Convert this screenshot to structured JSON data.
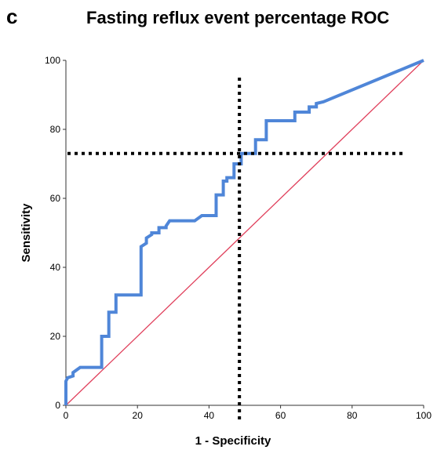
{
  "panel_label": "c",
  "chart_data": {
    "type": "line",
    "title": "Fasting reflux event percentage ROC",
    "xlabel": "1 - Specificity",
    "ylabel": "Sensitivity",
    "xlim": [
      0,
      100
    ],
    "ylim": [
      0,
      100
    ],
    "xticks": [
      "0",
      "20",
      "40",
      "60",
      "80",
      "100"
    ],
    "yticks": [
      "0",
      "20",
      "40",
      "60",
      "80",
      "100"
    ],
    "grid": false,
    "colors": {
      "roc": "#4f86d8",
      "reference": "#e0405c",
      "cutoff": "#000000"
    },
    "roc_curve": {
      "x": [
        0,
        0,
        0.5,
        2,
        2,
        4,
        10,
        10,
        12,
        12,
        14,
        14,
        21,
        21,
        22.5,
        22.5,
        24,
        24,
        26,
        26,
        28,
        28,
        29,
        36,
        38,
        42,
        42,
        44,
        44,
        45,
        45,
        47,
        47,
        49,
        49,
        53,
        53,
        56,
        56,
        64,
        64,
        68,
        68,
        70,
        70,
        72,
        100
      ],
      "y": [
        0,
        7,
        8,
        8.5,
        9.5,
        11,
        11,
        20,
        20,
        27,
        27,
        32,
        32,
        46,
        47,
        48.5,
        49.5,
        50,
        50,
        51.5,
        51.5,
        52,
        53.5,
        53.5,
        55,
        55,
        61,
        61,
        65,
        65,
        66,
        66,
        70,
        70,
        73,
        73,
        77,
        77,
        82.5,
        82.5,
        85,
        85,
        86.5,
        86.5,
        87.5,
        88,
        100
      ]
    },
    "reference_line": {
      "x": [
        0,
        100
      ],
      "y": [
        0,
        100
      ]
    },
    "cutoff_lines": {
      "x": 48.5,
      "y": 73
    }
  }
}
